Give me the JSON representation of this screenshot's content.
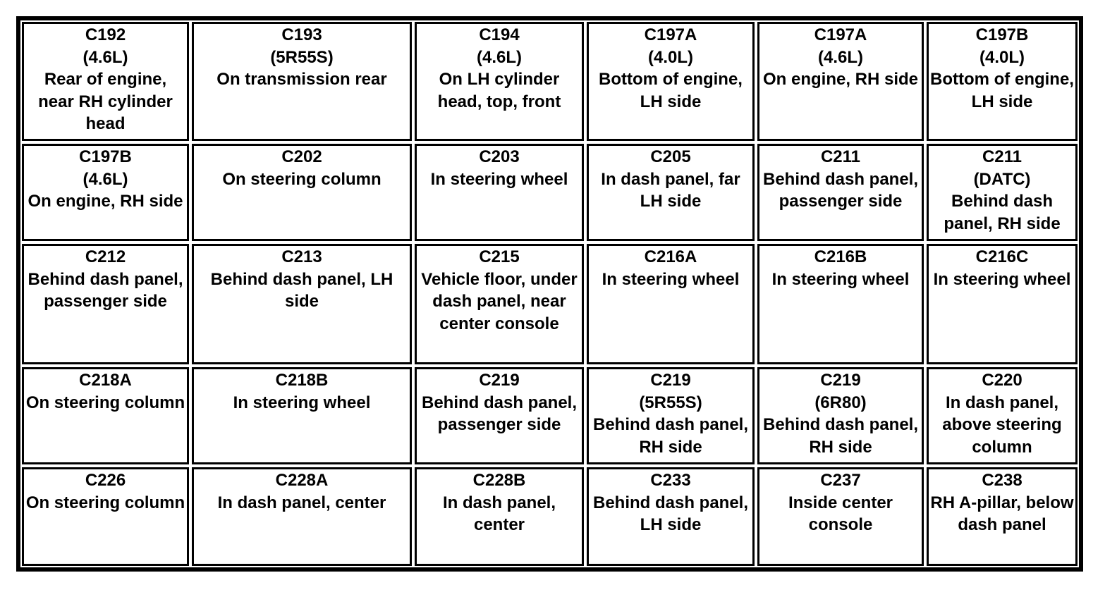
{
  "connectors": [
    {
      "id": "C192",
      "sub": "(4.6L)",
      "desc": "Rear of engine, near RH cylinder head"
    },
    {
      "id": "C193",
      "sub": "(5R55S)",
      "desc": "On transmission rear"
    },
    {
      "id": "C194",
      "sub": "(4.6L)",
      "desc": "On LH cylinder head, top, front"
    },
    {
      "id": "C197A",
      "sub": "(4.0L)",
      "desc": "Bottom of engine, LH side"
    },
    {
      "id": "C197A",
      "sub": "(4.6L)",
      "desc": "On engine, RH side"
    },
    {
      "id": "C197B",
      "sub": "(4.0L)",
      "desc": "Bottom of engine, LH side"
    },
    {
      "id": "C197B",
      "sub": "(4.6L)",
      "desc": "On engine, RH side"
    },
    {
      "id": "C202",
      "sub": "",
      "desc": "On steering column"
    },
    {
      "id": "C203",
      "sub": "",
      "desc": "In steering wheel"
    },
    {
      "id": "C205",
      "sub": "",
      "desc": "In dash panel, far LH side"
    },
    {
      "id": "C211",
      "sub": "",
      "desc": "Behind dash panel, passenger side"
    },
    {
      "id": "C211",
      "sub": "(DATC)",
      "desc": "Behind dash panel, RH side"
    },
    {
      "id": "C212",
      "sub": "",
      "desc": "Behind dash panel, passenger side"
    },
    {
      "id": "C213",
      "sub": "",
      "desc": "Behind dash panel, LH side"
    },
    {
      "id": "C215",
      "sub": "",
      "desc": "Vehicle floor, under dash panel, near center console"
    },
    {
      "id": "C216A",
      "sub": "",
      "desc": "In steering wheel"
    },
    {
      "id": "C216B",
      "sub": "",
      "desc": "In steering wheel"
    },
    {
      "id": "C216C",
      "sub": "",
      "desc": "In steering wheel"
    },
    {
      "id": "C218A",
      "sub": "",
      "desc": "On steering column"
    },
    {
      "id": "C218B",
      "sub": "",
      "desc": "In steering wheel"
    },
    {
      "id": "C219",
      "sub": "",
      "desc": "Behind dash panel, passenger side"
    },
    {
      "id": "C219",
      "sub": "(5R55S)",
      "desc": "Behind dash panel, RH side"
    },
    {
      "id": "C219",
      "sub": "(6R80)",
      "desc": "Behind dash panel, RH side"
    },
    {
      "id": "C220",
      "sub": "",
      "desc": "In dash panel, above steering column"
    },
    {
      "id": "C226",
      "sub": "",
      "desc": "On steering column"
    },
    {
      "id": "C228A",
      "sub": "",
      "desc": "In dash panel, center"
    },
    {
      "id": "C228B",
      "sub": "",
      "desc": "In dash panel, center"
    },
    {
      "id": "C233",
      "sub": "",
      "desc": "Behind dash panel, LH side"
    },
    {
      "id": "C237",
      "sub": "",
      "desc": "Inside center console"
    },
    {
      "id": "C238",
      "sub": "",
      "desc": "RH A-pillar, below dash panel"
    }
  ]
}
